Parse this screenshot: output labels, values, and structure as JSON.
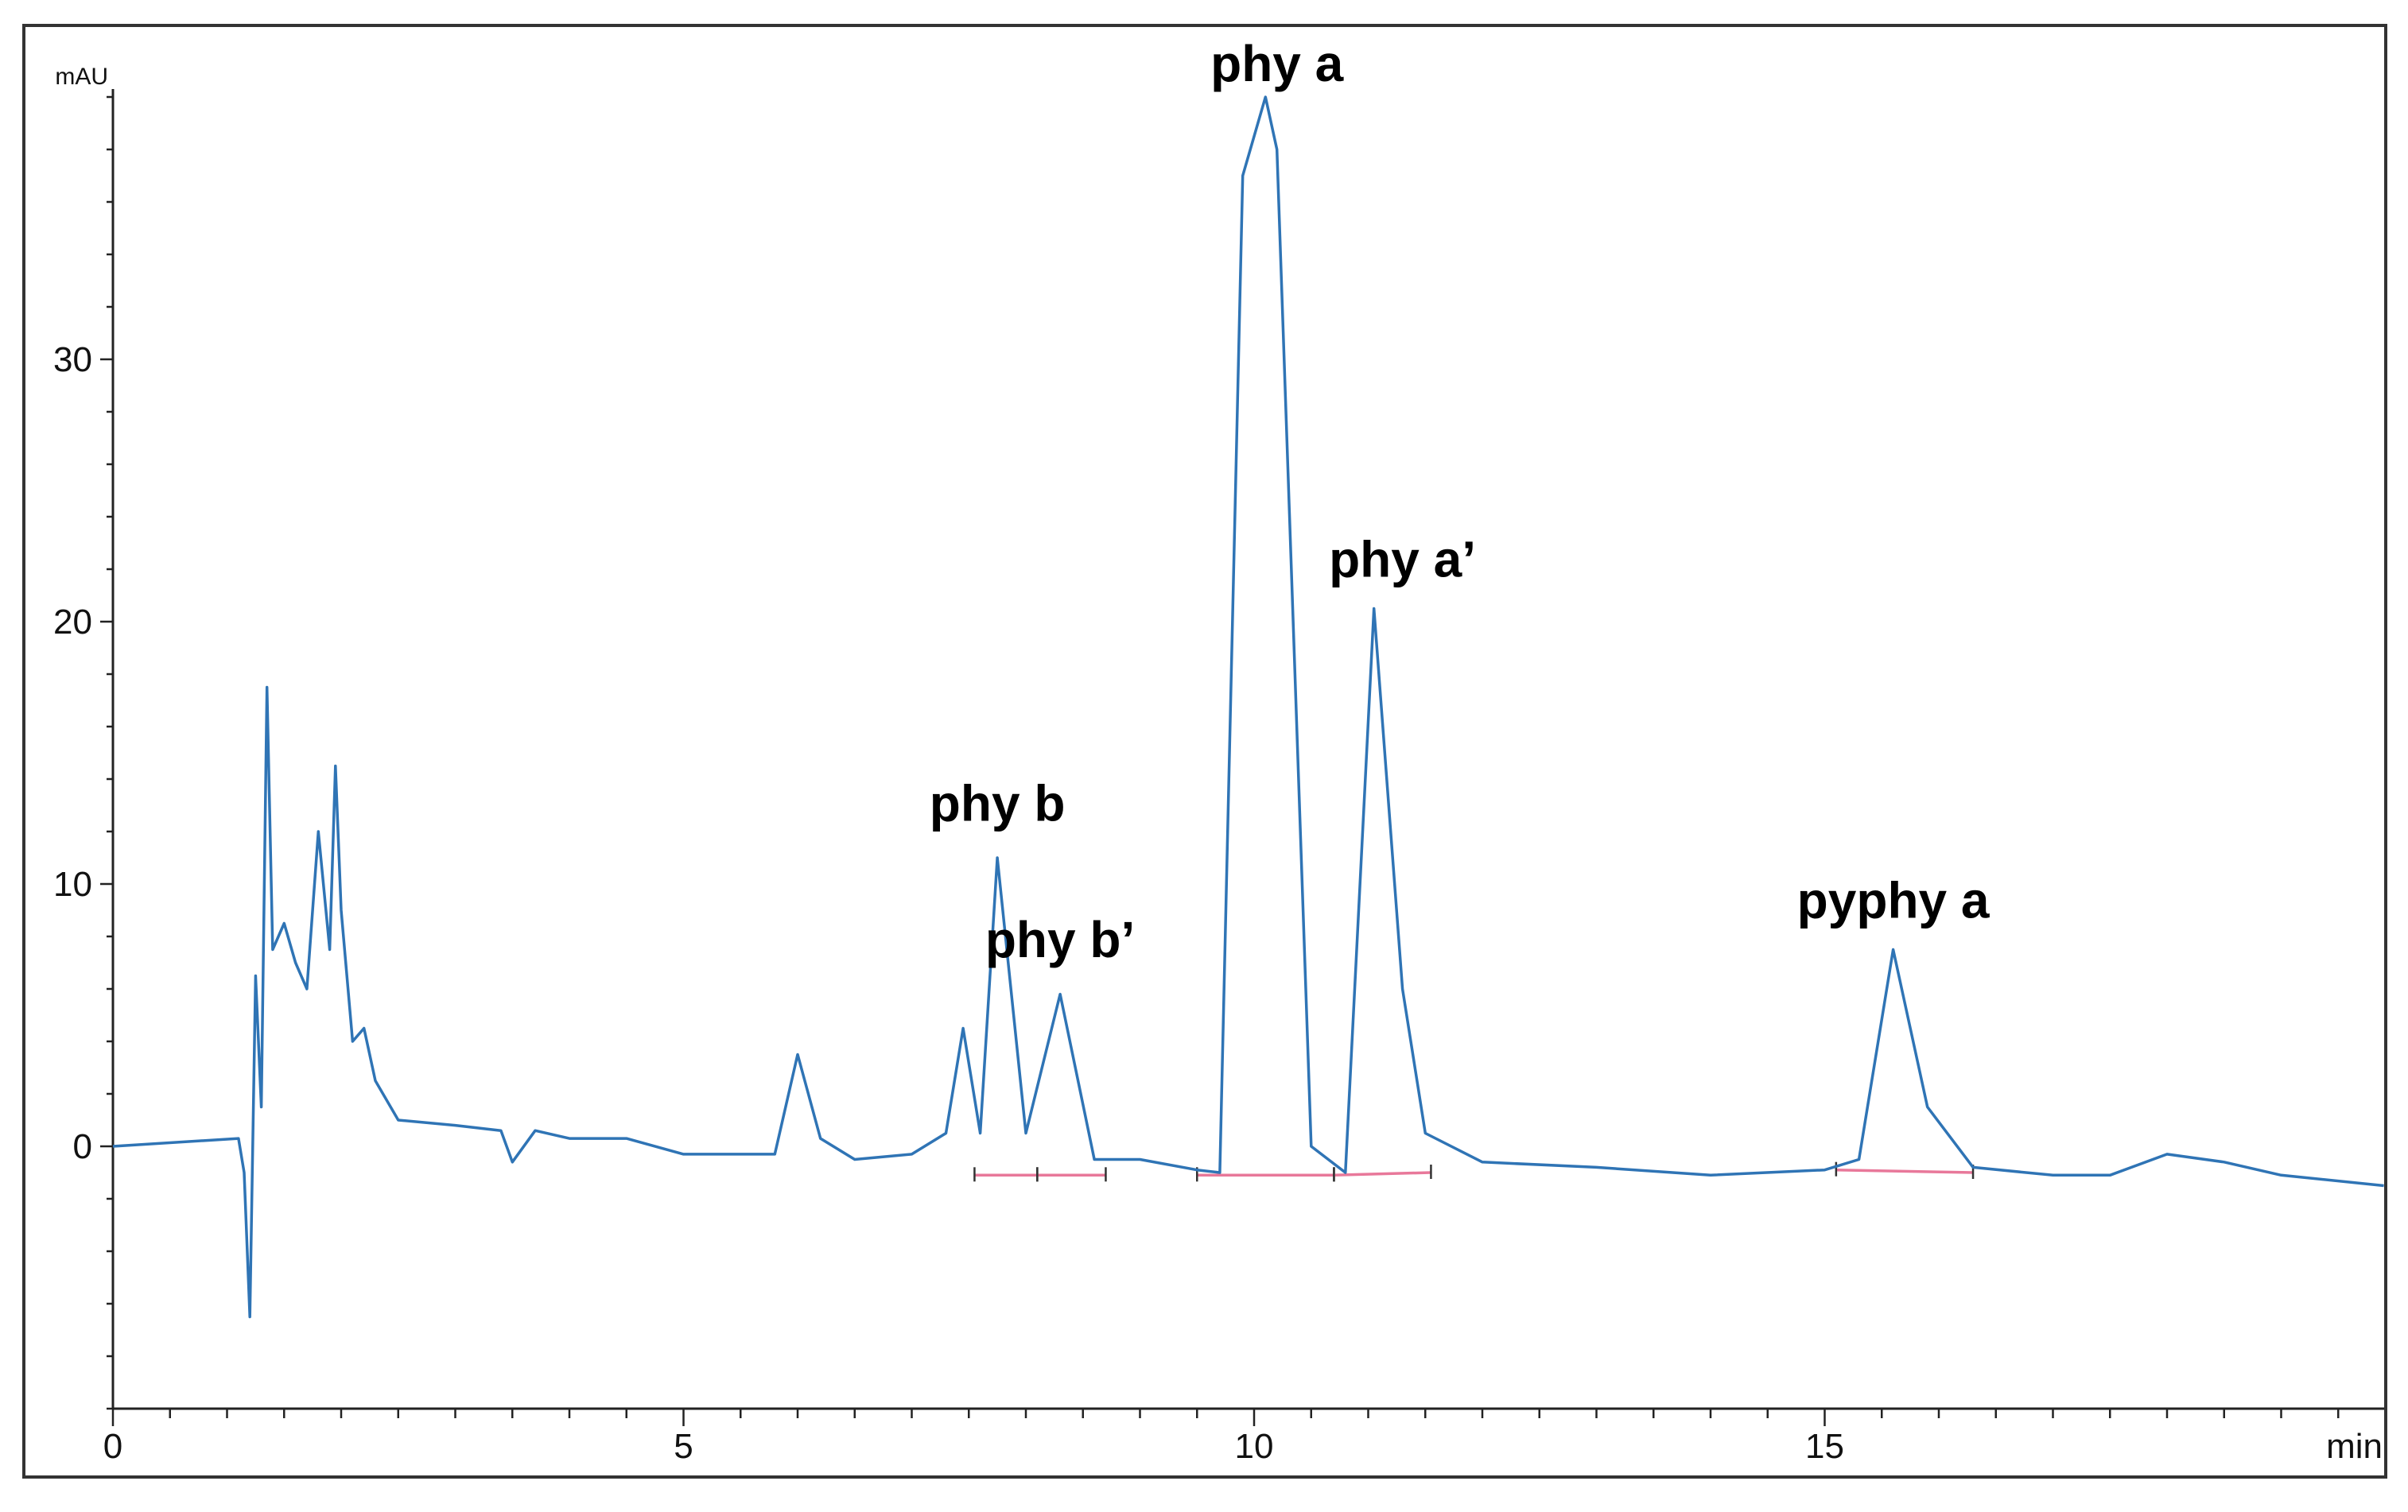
{
  "chart_data": {
    "type": "line",
    "title": "",
    "xlabel": "min",
    "ylabel": "mAU",
    "xlim": [
      0,
      19.9
    ],
    "ylim": [
      -10,
      40
    ],
    "x_ticks": [
      0,
      5,
      10,
      15
    ],
    "y_ticks": [
      0,
      10,
      20,
      30
    ],
    "x_tick_labels": [
      "0",
      "5",
      "10",
      "15"
    ],
    "y_tick_labels": [
      "0",
      "10",
      "20",
      "30"
    ],
    "grid": false,
    "colors": {
      "trace": "#2f74b5",
      "baseline": "#e8789a",
      "axis": "#222222"
    },
    "series": [
      {
        "points": [
          [
            0,
            0
          ],
          [
            1.1,
            0.3
          ],
          [
            1.15,
            -1
          ],
          [
            1.2,
            -6.5
          ],
          [
            1.25,
            6.5
          ],
          [
            1.3,
            1.5
          ],
          [
            1.35,
            17.5
          ],
          [
            1.4,
            7.5
          ],
          [
            1.5,
            8.5
          ],
          [
            1.6,
            7
          ],
          [
            1.7,
            6
          ],
          [
            1.8,
            12
          ],
          [
            1.9,
            7.5
          ],
          [
            1.95,
            14.5
          ],
          [
            2.0,
            9
          ],
          [
            2.1,
            4
          ],
          [
            2.2,
            4.5
          ],
          [
            2.3,
            2.5
          ],
          [
            2.5,
            1
          ],
          [
            3.0,
            0.8
          ],
          [
            3.4,
            0.6
          ],
          [
            3.5,
            -0.6
          ],
          [
            3.7,
            0.6
          ],
          [
            4.0,
            0.3
          ],
          [
            4.5,
            0.3
          ],
          [
            5.0,
            -0.3
          ],
          [
            5.5,
            -0.3
          ],
          [
            5.8,
            -0.3
          ],
          [
            6.0,
            3.5
          ],
          [
            6.2,
            0.3
          ],
          [
            6.5,
            -0.5
          ],
          [
            7.0,
            -0.3
          ],
          [
            7.3,
            0.5
          ],
          [
            7.45,
            4.5
          ],
          [
            7.6,
            0.5
          ],
          [
            7.75,
            11
          ],
          [
            8.0,
            0.5
          ],
          [
            8.3,
            5.8
          ],
          [
            8.6,
            -0.5
          ],
          [
            9.0,
            -0.5
          ],
          [
            9.5,
            -0.9
          ],
          [
            9.7,
            -1
          ],
          [
            9.9,
            37
          ],
          [
            10.1,
            40
          ],
          [
            10.2,
            38
          ],
          [
            10.5,
            0
          ],
          [
            10.8,
            -1
          ],
          [
            11.05,
            20.5
          ],
          [
            11.3,
            6
          ],
          [
            11.5,
            0.5
          ],
          [
            12.0,
            -0.6
          ],
          [
            13.0,
            -0.8
          ],
          [
            14.0,
            -1.1
          ],
          [
            15.0,
            -0.9
          ],
          [
            15.3,
            -0.5
          ],
          [
            15.6,
            7.5
          ],
          [
            15.9,
            1.5
          ],
          [
            16.3,
            -0.8
          ],
          [
            17.0,
            -1.1
          ],
          [
            17.5,
            -1.1
          ],
          [
            18.0,
            -0.3
          ],
          [
            18.5,
            -0.6
          ],
          [
            19.0,
            -1.1
          ],
          [
            19.9,
            -1.5
          ]
        ]
      }
    ],
    "baselines": [
      {
        "x": [
          7.55,
          8.1
        ],
        "y": [
          -1.1,
          -1.1
        ]
      },
      {
        "x": [
          8.1,
          8.7
        ],
        "y": [
          -1.1,
          -1.1
        ]
      },
      {
        "x": [
          9.5,
          10.7
        ],
        "y": [
          -1.1,
          -1.1
        ]
      },
      {
        "x": [
          10.7,
          11.55
        ],
        "y": [
          -1.1,
          -1.0
        ]
      },
      {
        "x": [
          15.1,
          16.3
        ],
        "y": [
          -0.9,
          -1.0
        ]
      }
    ],
    "annotations": [
      {
        "text": "phy a",
        "x": 10.2,
        "y": 40
      },
      {
        "text": "phy a’",
        "x": 11.3,
        "y": 20.5
      },
      {
        "text": "phy b",
        "x": 7.75,
        "y": 11.2
      },
      {
        "text": "phy b’",
        "x": 8.3,
        "y": 6
      },
      {
        "text": "pyphy a",
        "x": 15.6,
        "y": 7.5
      }
    ]
  }
}
